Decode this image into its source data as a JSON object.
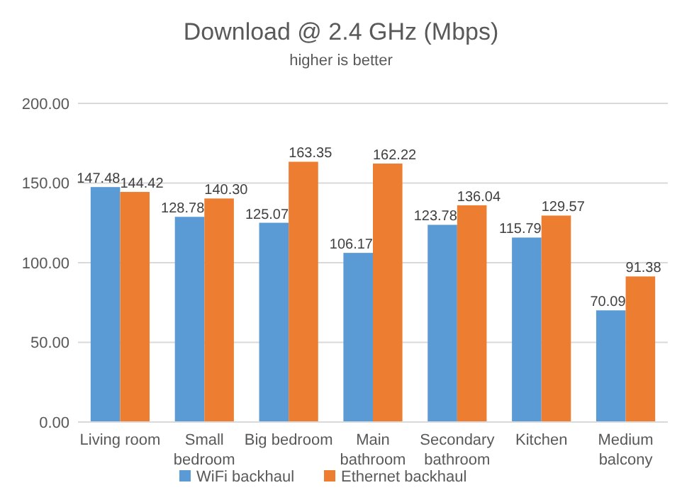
{
  "chart_data": {
    "type": "bar",
    "title": "Download @ 2.4 GHz (Mbps)",
    "subtitle": "higher is better",
    "categories": [
      "Living room",
      "Small bedroom",
      "Big bedroom",
      "Main bathroom",
      "Secondary bathroom",
      "Kitchen",
      "Medium balcony"
    ],
    "series": [
      {
        "name": "WiFi backhaul",
        "color": "#5b9bd5",
        "values": [
          147.48,
          128.78,
          125.07,
          106.17,
          123.78,
          115.79,
          70.09
        ],
        "value_labels": [
          "147.48",
          "128.78",
          "125.07",
          "106.17",
          "123.78",
          "115.79",
          "70.09"
        ]
      },
      {
        "name": "Ethernet backhaul",
        "color": "#ed7d31",
        "values": [
          144.42,
          140.3,
          163.35,
          162.22,
          136.04,
          129.57,
          91.38
        ],
        "value_labels": [
          "144.42",
          "140.30",
          "163.35",
          "162.22",
          "136.04",
          "129.57",
          "91.38"
        ]
      }
    ],
    "ylim": [
      0,
      200
    ],
    "yticks": [
      {
        "value": 0,
        "label": "0.00"
      },
      {
        "value": 50,
        "label": "50.00"
      },
      {
        "value": 100,
        "label": "100.00"
      },
      {
        "value": 150,
        "label": "150.00"
      },
      {
        "value": 200,
        "label": "200.00"
      }
    ],
    "grid": "y",
    "legend": "bottom"
  }
}
